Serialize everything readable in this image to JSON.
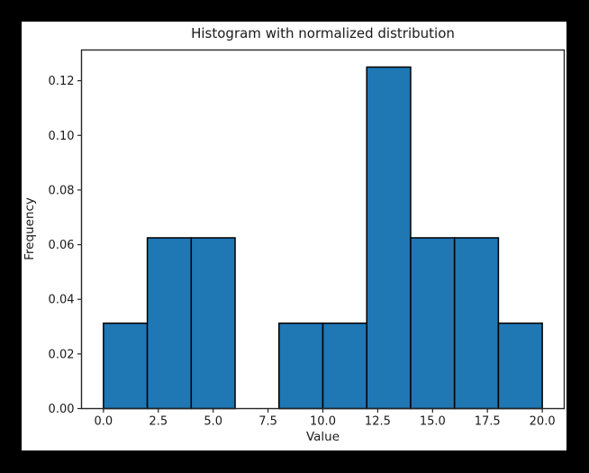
{
  "window": {
    "background_color": "#000000",
    "figure_background_color": "#ffffff"
  },
  "chart_data": {
    "type": "bar",
    "subtype": "histogram",
    "title": "Histogram with normalized distribution",
    "xlabel": "Value",
    "ylabel": "Frequency",
    "bin_edges": [
      0,
      2,
      4,
      6,
      8,
      10,
      12,
      14,
      16,
      18,
      20
    ],
    "densities": [
      0.03125,
      0.0625,
      0.0625,
      0,
      0.03125,
      0.03125,
      0.125,
      0.0625,
      0.0625,
      0.03125
    ],
    "x_tick_values": [
      0,
      2.5,
      5,
      7.5,
      10,
      12.5,
      15,
      17.5,
      20
    ],
    "x_tick_labels": [
      "0.0",
      "2.5",
      "5.0",
      "7.5",
      "10.0",
      "12.5",
      "15.0",
      "17.5",
      "20.0"
    ],
    "y_tick_values": [
      0,
      0.02,
      0.04,
      0.06,
      0.08,
      0.1,
      0.12
    ],
    "y_tick_labels": [
      "0.00",
      "0.02",
      "0.04",
      "0.06",
      "0.08",
      "0.10",
      "0.12"
    ],
    "xlim": [
      -1,
      21
    ],
    "ylim": [
      0,
      0.13125
    ],
    "bar_color": "#1f77b4",
    "bar_edge_color": "#000000",
    "axes_frame_color": "#262626",
    "grid": false,
    "legend": null
  }
}
